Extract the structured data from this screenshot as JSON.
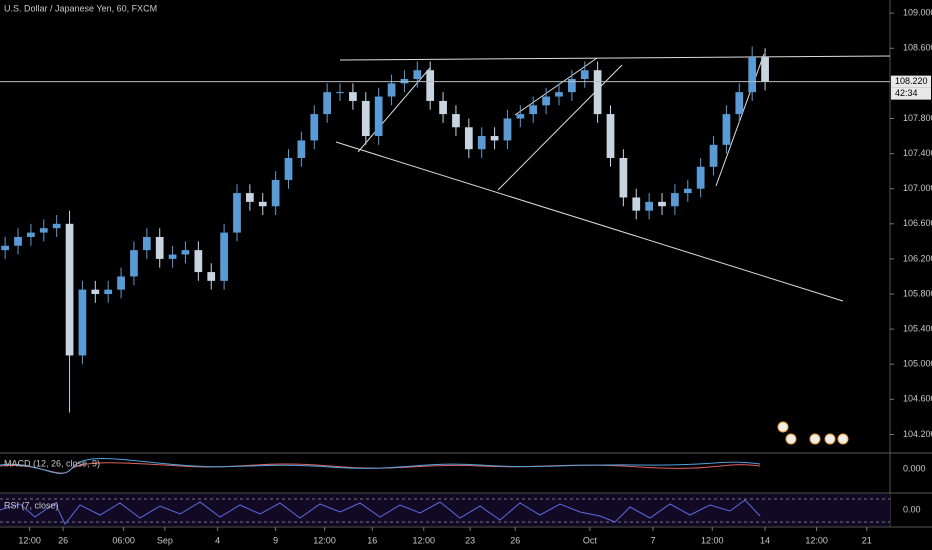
{
  "chart_data": {
    "type": "candlestick",
    "title": "U.S. Dollar / Japanese Yen, 60, FXCM",
    "up_color": "#5b9bd5",
    "down_color": "#c8d4e0",
    "grid": false,
    "xlim": [
      -0.4,
      68.7
    ],
    "ylim": [
      104.0,
      109.15
    ],
    "opens": [
      106.3,
      106.35,
      106.45,
      106.5,
      106.55,
      106.6,
      105.1,
      105.85,
      105.8,
      105.85,
      106.0,
      106.3,
      106.45,
      106.2,
      106.25,
      106.3,
      106.05,
      105.95,
      106.5,
      106.95,
      106.85,
      106.8,
      107.1,
      107.35,
      107.55,
      107.85,
      108.1,
      108.1,
      108.0,
      107.6,
      108.05,
      108.2,
      108.25,
      108.35,
      108.0,
      107.85,
      107.7,
      107.45,
      107.6,
      107.55,
      107.8,
      107.85,
      107.95,
      108.05,
      108.1,
      108.25,
      108.35,
      107.85,
      107.35,
      106.9,
      106.75,
      106.85,
      106.8,
      106.95,
      107.0,
      107.25,
      107.5,
      107.85,
      108.1,
      108.5
    ],
    "highs": [
      106.45,
      106.55,
      106.6,
      106.65,
      106.7,
      106.75,
      105.95,
      105.95,
      105.95,
      106.1,
      106.4,
      106.55,
      106.55,
      106.35,
      106.4,
      106.4,
      106.15,
      106.6,
      107.05,
      107.05,
      106.95,
      107.2,
      107.45,
      107.65,
      107.95,
      108.2,
      108.2,
      108.2,
      108.1,
      108.15,
      108.3,
      108.35,
      108.45,
      108.45,
      108.1,
      107.95,
      107.8,
      107.7,
      107.7,
      107.9,
      107.95,
      108.05,
      108.15,
      108.2,
      108.35,
      108.45,
      108.45,
      107.95,
      107.45,
      107.0,
      106.95,
      106.95,
      107.05,
      107.1,
      107.35,
      107.6,
      107.95,
      108.2,
      108.62,
      108.6
    ],
    "lows": [
      106.2,
      106.25,
      106.35,
      106.4,
      106.45,
      104.45,
      105.0,
      105.7,
      105.7,
      105.75,
      105.9,
      106.2,
      106.1,
      106.1,
      106.15,
      105.95,
      105.85,
      105.85,
      106.4,
      106.75,
      106.7,
      106.7,
      107.0,
      107.25,
      107.45,
      107.75,
      108.0,
      107.9,
      107.5,
      107.5,
      107.95,
      108.1,
      108.15,
      107.9,
      107.75,
      107.6,
      107.35,
      107.35,
      107.45,
      107.45,
      107.7,
      107.75,
      107.85,
      107.95,
      108.0,
      108.15,
      107.75,
      107.25,
      106.8,
      106.65,
      106.65,
      106.7,
      106.7,
      106.85,
      106.9,
      107.15,
      107.4,
      107.75,
      108.0,
      108.12
    ],
    "closes": [
      106.35,
      106.45,
      106.5,
      106.55,
      106.6,
      105.1,
      105.85,
      105.8,
      105.85,
      106.0,
      106.3,
      106.45,
      106.2,
      106.25,
      106.3,
      106.05,
      105.95,
      106.5,
      106.95,
      106.85,
      106.8,
      107.1,
      107.35,
      107.55,
      107.85,
      108.1,
      108.1,
      108.0,
      107.6,
      108.05,
      108.2,
      108.25,
      108.35,
      108.0,
      107.85,
      107.7,
      107.45,
      107.6,
      107.55,
      107.8,
      107.85,
      107.95,
      108.05,
      108.1,
      108.25,
      108.35,
      107.85,
      107.35,
      106.9,
      106.75,
      106.85,
      106.8,
      106.95,
      107.0,
      107.25,
      107.5,
      107.85,
      108.1,
      108.5,
      108.22
    ],
    "yticks": [
      {
        "value": 104.2,
        "label": "104.200"
      },
      {
        "value": 104.6,
        "label": "104.600"
      },
      {
        "value": 105.0,
        "label": "105.000"
      },
      {
        "value": 105.4,
        "label": "105.400"
      },
      {
        "value": 105.8,
        "label": "105.800"
      },
      {
        "value": 106.2,
        "label": "106.200"
      },
      {
        "value": 106.6,
        "label": "106.600"
      },
      {
        "value": 107.0,
        "label": "107.000"
      },
      {
        "value": 107.4,
        "label": "107.400"
      },
      {
        "value": 107.8,
        "label": "107.800"
      },
      {
        "value": 108.6,
        "label": "108.600"
      },
      {
        "value": 109.0,
        "label": "109.000"
      }
    ],
    "xticks": [
      {
        "value": 1.9,
        "label": "12:00"
      },
      {
        "value": 4.5,
        "label": "26"
      },
      {
        "value": 9.2,
        "label": "06:00"
      },
      {
        "value": 12.4,
        "label": "Sep"
      },
      {
        "value": 16.5,
        "label": "4"
      },
      {
        "value": 21.0,
        "label": "9"
      },
      {
        "value": 24.8,
        "label": "12:00"
      },
      {
        "value": 28.5,
        "label": "16"
      },
      {
        "value": 32.5,
        "label": "12:00"
      },
      {
        "value": 36.1,
        "label": "23"
      },
      {
        "value": 39.6,
        "label": "26"
      },
      {
        "value": 45.4,
        "label": "Oct"
      },
      {
        "value": 50.3,
        "label": "7"
      },
      {
        "value": 54.9,
        "label": "12:00"
      },
      {
        "value": 59.0,
        "label": "14"
      },
      {
        "value": 63.0,
        "label": "12:00"
      },
      {
        "value": 66.9,
        "label": "21"
      }
    ],
    "last_price": {
      "value": 108.22,
      "label": "108.220"
    },
    "countdown": "42:34",
    "macd": {
      "title": "MACD (12, 26, close, 9)",
      "axis_label": "0.000"
    },
    "rsi": {
      "title": "RSI (7, close)",
      "axis_label": "0.00"
    }
  }
}
